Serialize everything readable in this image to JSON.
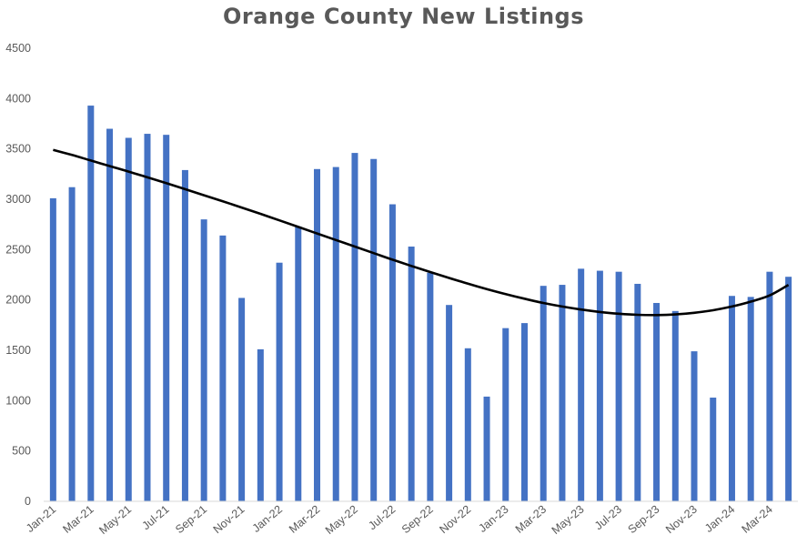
{
  "chart_data": {
    "type": "bar",
    "title": "Orange County New Listings",
    "xlabel": "",
    "ylabel": "",
    "ylim": [
      0,
      4500
    ],
    "yticks": [
      0,
      500,
      1000,
      1500,
      2000,
      2500,
      3000,
      3500,
      4000,
      4500
    ],
    "grid": false,
    "legend": "none",
    "bar_color": "#4472C4",
    "trend_color": "#000000",
    "categories": [
      "Jan-21",
      "Feb-21",
      "Mar-21",
      "Apr-21",
      "May-21",
      "Jun-21",
      "Jul-21",
      "Aug-21",
      "Sep-21",
      "Oct-21",
      "Nov-21",
      "Dec-21",
      "Jan-22",
      "Feb-22",
      "Mar-22",
      "Apr-22",
      "May-22",
      "Jun-22",
      "Jul-22",
      "Aug-22",
      "Sep-22",
      "Oct-22",
      "Nov-22",
      "Dec-22",
      "Jan-23",
      "Feb-23",
      "Mar-23",
      "Apr-23",
      "May-23",
      "Jun-23",
      "Jul-23",
      "Aug-23",
      "Sep-23",
      "Oct-23",
      "Nov-23",
      "Dec-23",
      "Jan-24",
      "Feb-24",
      "Mar-24",
      "Apr-24"
    ],
    "x_tick_labels": [
      "Jan-21",
      "Mar-21",
      "May-21",
      "Jul-21",
      "Sep-21",
      "Nov-21",
      "Jan-22",
      "Mar-22",
      "May-22",
      "Jul-22",
      "Sep-22",
      "Nov-22",
      "Jan-23",
      "Mar-23",
      "May-23",
      "Jul-23",
      "Sep-23",
      "Nov-23",
      "Jan-24",
      "Mar-24"
    ],
    "series": [
      {
        "values": [
          3010,
          3120,
          3930,
          3700,
          3610,
          3650,
          3640,
          3290,
          2800,
          2640,
          2020,
          1510,
          2370,
          2730,
          3300,
          3320,
          3460,
          3400,
          2950,
          2530,
          2270,
          1950,
          1520,
          1040,
          1720,
          1770,
          2140,
          2150,
          2310,
          2290,
          2280,
          2160,
          1970,
          1890,
          1490,
          1030,
          2040,
          2030,
          2280,
          2230
        ]
      }
    ],
    "trendline": {
      "type": "polynomial",
      "values": [
        3490,
        3440,
        3385,
        3330,
        3275,
        3218,
        3160,
        3100,
        3040,
        2980,
        2918,
        2855,
        2790,
        2725,
        2660,
        2595,
        2530,
        2465,
        2400,
        2338,
        2277,
        2218,
        2162,
        2108,
        2058,
        2012,
        1970,
        1935,
        1905,
        1880,
        1863,
        1852,
        1850,
        1856,
        1872,
        1898,
        1935,
        1983,
        2045,
        2150
      ]
    }
  }
}
